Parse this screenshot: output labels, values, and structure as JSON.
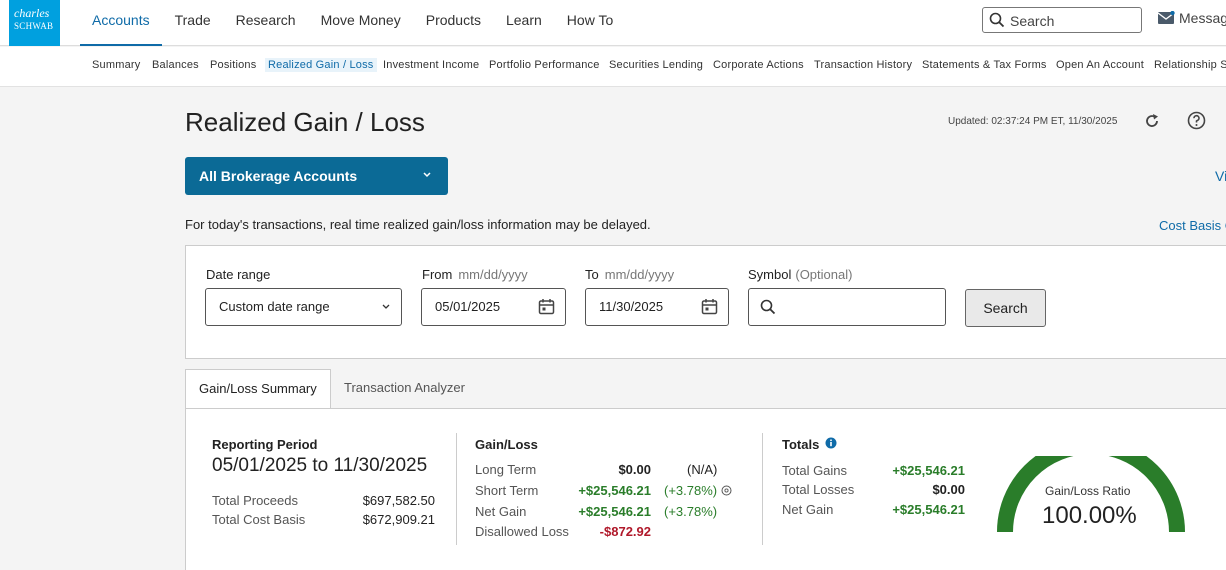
{
  "brand": {
    "line1": "charles",
    "line2": "SCHWAB"
  },
  "topnav": [
    {
      "label": "Accounts",
      "active": true
    },
    {
      "label": "Trade"
    },
    {
      "label": "Research"
    },
    {
      "label": "Move Money"
    },
    {
      "label": "Products"
    },
    {
      "label": "Learn"
    },
    {
      "label": "How To"
    }
  ],
  "search": {
    "label": "Search"
  },
  "messages": {
    "label": "Messag"
  },
  "subnav": [
    {
      "label": "Summary"
    },
    {
      "label": "Balances"
    },
    {
      "label": "Positions"
    },
    {
      "label": "Realized Gain / Loss",
      "active": true
    },
    {
      "label": "Investment Income"
    },
    {
      "label": "Portfolio Performance"
    },
    {
      "label": "Securities Lending"
    },
    {
      "label": "Corporate Actions"
    },
    {
      "label": "Transaction History"
    },
    {
      "label": "Statements & Tax Forms"
    },
    {
      "label": "Open An Account"
    },
    {
      "label": "Relationship S"
    }
  ],
  "page": {
    "title": "Realized Gain / Loss",
    "updated": "Updated: 02:37:24 PM ET, 11/30/2025",
    "account_selector": "All Brokerage Accounts",
    "view_link": "Vi",
    "delay_notice": "For today's transactions, real time realized gain/loss information may be delayed.",
    "cost_basis_link": "Cost Basis C"
  },
  "filters": {
    "date_range_label": "Date range",
    "date_range_value": "Custom date range",
    "from_label": "From",
    "from_hint": "mm/dd/yyyy",
    "from_value": "05/01/2025",
    "to_label": "To",
    "to_hint": "mm/dd/yyyy",
    "to_value": "11/30/2025",
    "symbol_label": "Symbol",
    "symbol_hint": "(Optional)",
    "symbol_value": "",
    "search_button": "Search"
  },
  "tabs": [
    {
      "label": "Gain/Loss Summary",
      "active": true
    },
    {
      "label": "Transaction Analyzer"
    }
  ],
  "summary": {
    "reporting_period_title": "Reporting Period",
    "reporting_period": "05/01/2025 to 11/30/2025",
    "total_proceeds_label": "Total Proceeds",
    "total_proceeds": "$697,582.50",
    "total_cost_basis_label": "Total Cost Basis",
    "total_cost_basis": "$672,909.21"
  },
  "gainloss": {
    "title": "Gain/Loss",
    "rows": [
      {
        "label": "Long Term",
        "value": "$0.00",
        "pct": "(N/A)"
      },
      {
        "label": "Short Term",
        "value": "+$25,546.21",
        "pct": "(+3.78%)"
      },
      {
        "label": "Net Gain",
        "value": "+$25,546.21",
        "pct": "(+3.78%)"
      },
      {
        "label": "Disallowed Loss",
        "value": "-$872.92",
        "pct": ""
      }
    ]
  },
  "totals": {
    "title": "Totals",
    "rows": [
      {
        "label": "Total Gains",
        "value": "+$25,546.21"
      },
      {
        "label": "Total Losses",
        "value": "$0.00"
      },
      {
        "label": "Net Gain",
        "value": "+$25,546.21"
      }
    ]
  },
  "gauge": {
    "label": "Gain/Loss Ratio",
    "value": "100.00%",
    "ratio": 1.0,
    "color": "#2a7d2a"
  }
}
